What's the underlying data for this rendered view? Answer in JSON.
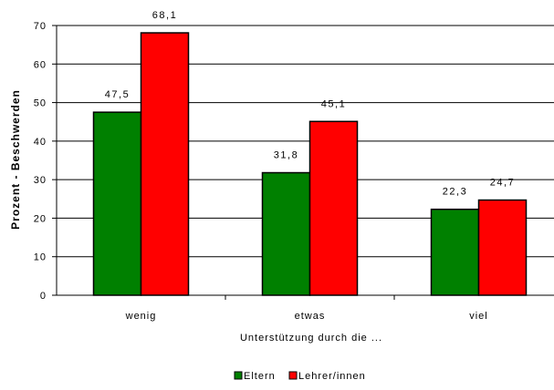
{
  "chart_data": {
    "type": "bar",
    "title": "",
    "xlabel": "Unterstützung durch die ...",
    "ylabel": "Prozent - Beschwerden",
    "categories": [
      "wenig",
      "etwas",
      "viel"
    ],
    "series": [
      {
        "name": "Eltern",
        "values": [
          47.5,
          31.8,
          22.3
        ],
        "labels": [
          "47,5",
          "31,8",
          "22,3"
        ],
        "color": "#008000"
      },
      {
        "name": "Lehrer/innen",
        "values": [
          68.1,
          45.1,
          24.7
        ],
        "labels": [
          "68,1",
          "45,1",
          "24,7"
        ],
        "color": "#ff0000"
      }
    ],
    "ylim": [
      0,
      70
    ],
    "yticks": [
      0,
      10,
      20,
      30,
      40,
      50,
      60,
      70
    ],
    "ytick_labels": [
      "0",
      "10",
      "20",
      "30",
      "40",
      "50",
      "60",
      "70"
    ],
    "grid": true,
    "legend": "bottom-center"
  }
}
